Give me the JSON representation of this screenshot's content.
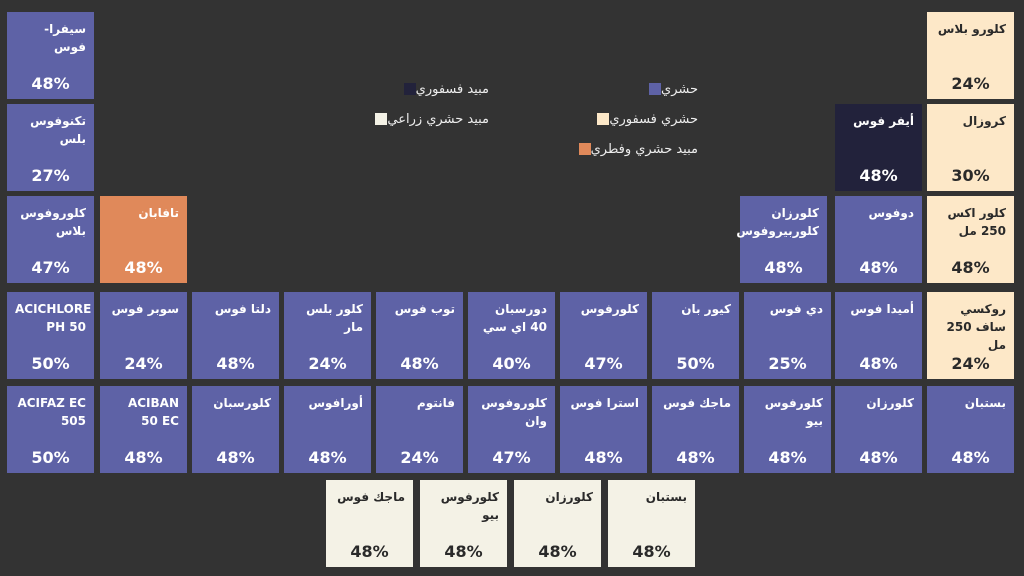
{
  "legend": [
    {
      "key": "insect",
      "label": "حشري",
      "color": "#5e62a6"
    },
    {
      "key": "insectphos",
      "label": "حشري فسفوري",
      "color": "#fde8c8"
    },
    {
      "key": "fung",
      "label": "مبيد حشري وفطري",
      "color": "#e0895a"
    },
    {
      "key": "phos",
      "label": "مبيد فسفوري",
      "color": "#22223b"
    },
    {
      "key": "agri",
      "label": "مبيد حشري زراعي",
      "color": "#f4f2e6"
    }
  ],
  "tiles": [
    {
      "name": "سيفرا-فوس",
      "value": "48%",
      "cat": "insect"
    },
    {
      "name": "كلورو بلاس",
      "value": "24%",
      "cat": "insectphos"
    },
    {
      "name": "تكنوفوس بلس",
      "value": "27%",
      "cat": "insect"
    },
    {
      "name": "أيفر فوس",
      "value": "48%",
      "cat": "phos"
    },
    {
      "name": "كروزال",
      "value": "30%",
      "cat": "insectphos"
    },
    {
      "name": "كلوروفوس بلاس",
      "value": "47%",
      "cat": "insect"
    },
    {
      "name": "تافابان",
      "value": "48%",
      "cat": "fung"
    },
    {
      "name": "كلورزان كلوربيروفوس",
      "value": "48%",
      "cat": "insect"
    },
    {
      "name": "دوفوس",
      "value": "48%",
      "cat": "insect"
    },
    {
      "name": "كلور اكس 250 مل",
      "value": "48%",
      "cat": "insectphos"
    },
    {
      "name": "ACICHLORE PH 50",
      "value": "50%",
      "cat": "insect"
    },
    {
      "name": "سوبر فوس",
      "value": "24%",
      "cat": "insect"
    },
    {
      "name": "دلتا فوس",
      "value": "48%",
      "cat": "insect"
    },
    {
      "name": "كلور بلس مار",
      "value": "24%",
      "cat": "insect"
    },
    {
      "name": "توب فوس",
      "value": "48%",
      "cat": "insect"
    },
    {
      "name": "دورسبان 40 اي سي",
      "value": "40%",
      "cat": "insect"
    },
    {
      "name": "كلورفوس",
      "value": "47%",
      "cat": "insect"
    },
    {
      "name": "كيور بان",
      "value": "50%",
      "cat": "insect"
    },
    {
      "name": "دي فوس",
      "value": "25%",
      "cat": "insect"
    },
    {
      "name": "أميدا فوس",
      "value": "48%",
      "cat": "insect"
    },
    {
      "name": "روكسي ساف 250 مل",
      "value": "24%",
      "cat": "insectphos"
    },
    {
      "name": "ACIFAZ EC 505",
      "value": "50%",
      "cat": "insect"
    },
    {
      "name": "ACIBAN 50 EC",
      "value": "48%",
      "cat": "insect"
    },
    {
      "name": "كلورسبان",
      "value": "48%",
      "cat": "insect"
    },
    {
      "name": "أورافوس",
      "value": "48%",
      "cat": "insect"
    },
    {
      "name": "فانتوم",
      "value": "24%",
      "cat": "insect"
    },
    {
      "name": "كلوروفوس وان",
      "value": "47%",
      "cat": "insect"
    },
    {
      "name": "استرا فوس",
      "value": "48%",
      "cat": "insect"
    },
    {
      "name": "ماجك فوس",
      "value": "48%",
      "cat": "insect"
    },
    {
      "name": "كلورفوس بيو",
      "value": "48%",
      "cat": "insect"
    },
    {
      "name": "كلورزان",
      "value": "48%",
      "cat": "insect"
    },
    {
      "name": "بستبان",
      "value": "48%",
      "cat": "insect"
    },
    {
      "name": "ماجك فوس",
      "value": "48%",
      "cat": "agri"
    },
    {
      "name": "كلورفوس بيو",
      "value": "48%",
      "cat": "agri"
    },
    {
      "name": "كلورزان",
      "value": "48%",
      "cat": "agri"
    },
    {
      "name": "بستبان",
      "value": "48%",
      "cat": "agri"
    }
  ]
}
